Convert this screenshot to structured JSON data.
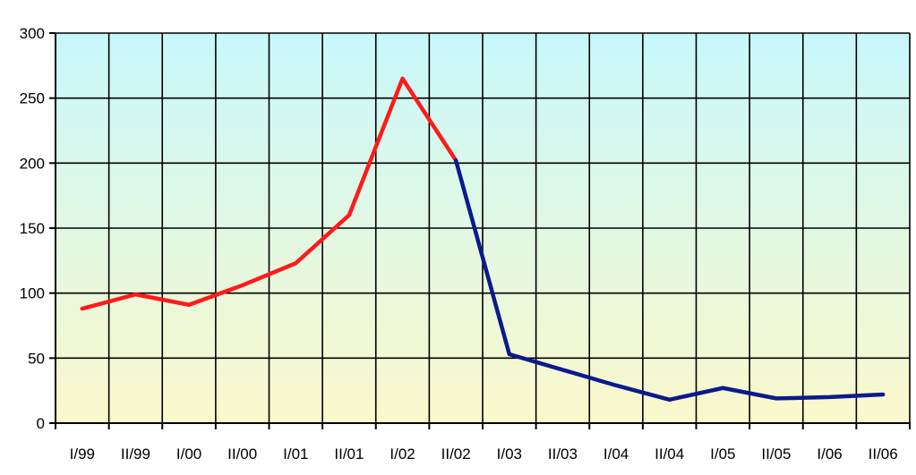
{
  "chart_data": {
    "type": "line",
    "title": "",
    "xlabel": "",
    "ylabel": "",
    "categories": [
      "I/99",
      "II/99",
      "I/00",
      "II/00",
      "I/01",
      "II/01",
      "I/02",
      "II/02",
      "I/03",
      "II/03",
      "I/04",
      "II/04",
      "I/05",
      "II/05",
      "I/06",
      "II/06"
    ],
    "ylim": [
      0,
      300
    ],
    "yticks": [
      0,
      50,
      100,
      150,
      200,
      250,
      300
    ],
    "grid": true,
    "legend": "none",
    "series": [
      {
        "color": "#ff1a1a",
        "points": [
          {
            "x": "I/99",
            "y": 88
          },
          {
            "x": "II/99",
            "y": 99
          },
          {
            "x": "I/00",
            "y": 91
          },
          {
            "x": "II/00",
            "y": 106
          },
          {
            "x": "I/01",
            "y": 123
          },
          {
            "x": "II/01",
            "y": 160
          },
          {
            "x": "I/02",
            "y": 265
          },
          {
            "x": "II/02",
            "y": 202
          }
        ]
      },
      {
        "color": "#0b1a8c",
        "points": [
          {
            "x": "II/02",
            "y": 202
          },
          {
            "x": "I/03",
            "y": 53
          },
          {
            "x": "II/03",
            "y": 41
          },
          {
            "x": "I/04",
            "y": 29
          },
          {
            "x": "II/04",
            "y": 18
          },
          {
            "x": "I/05",
            "y": 27
          },
          {
            "x": "II/05",
            "y": 19
          },
          {
            "x": "I/06",
            "y": 20
          },
          {
            "x": "II/06",
            "y": 22
          }
        ]
      }
    ],
    "background_gradient": [
      "#c8f8fb",
      "#fbf8cc"
    ],
    "gridline_color": "#000000"
  }
}
